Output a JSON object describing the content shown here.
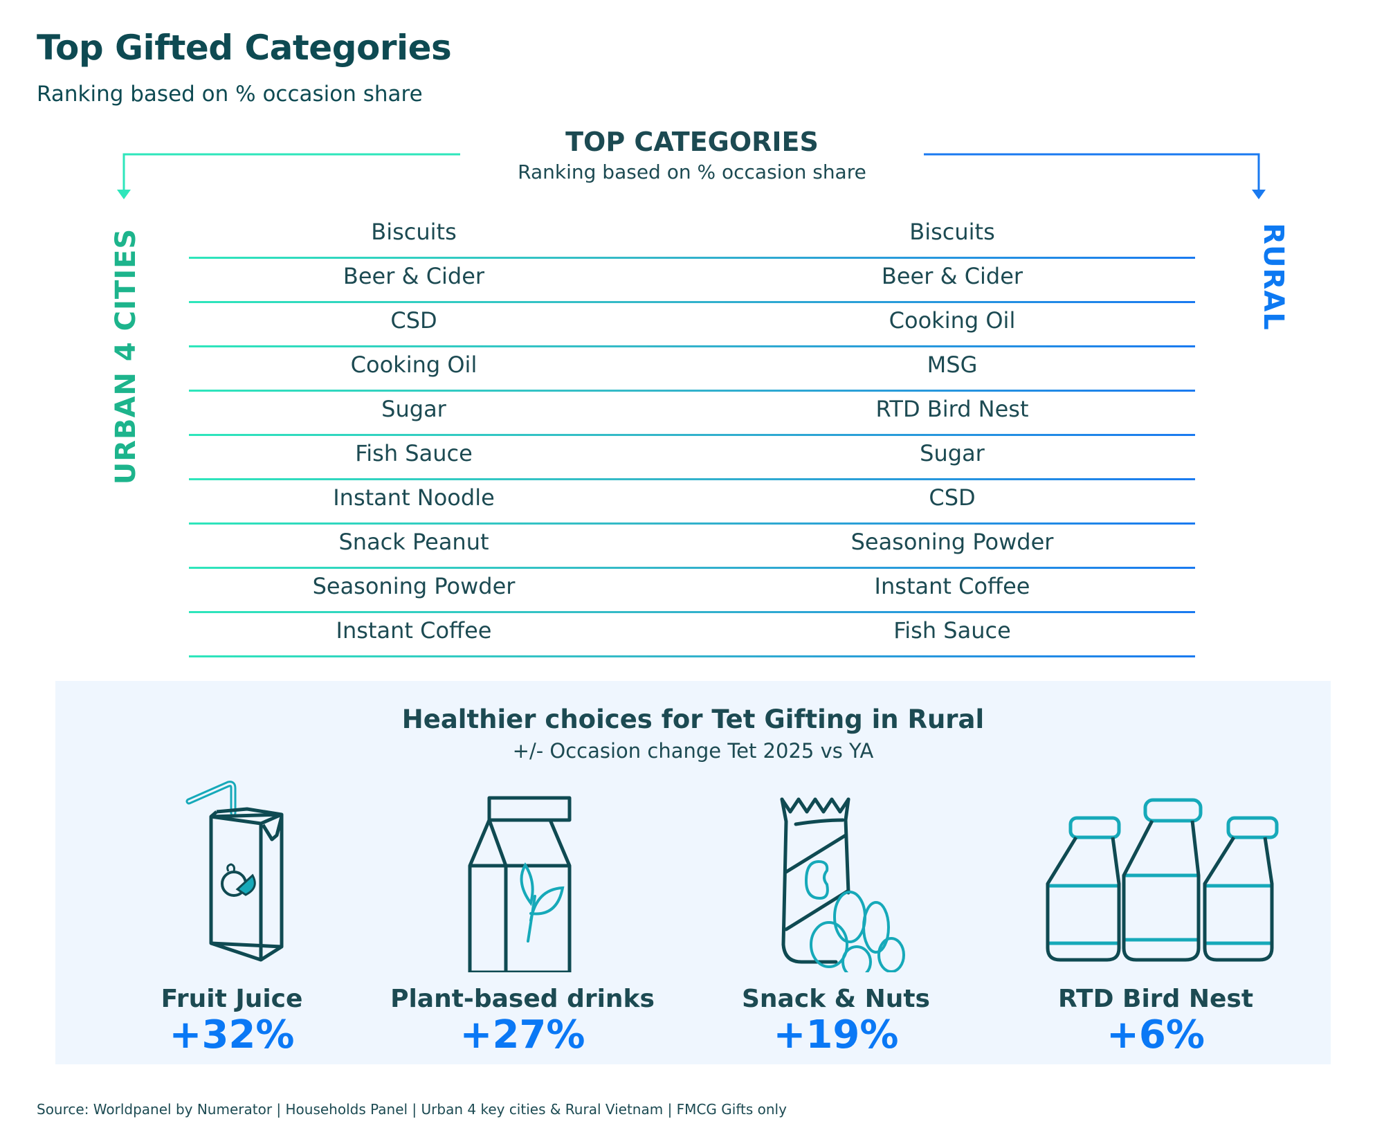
{
  "header": {
    "title": "Top Gifted Categories",
    "subtitle": "Ranking based on % occasion share"
  },
  "top_categories": {
    "heading": "TOP CATEGORIES",
    "subheading": "Ranking based on % occasion share",
    "left_label": "URBAN 4 CITIES",
    "right_label": "RURAL",
    "colors": {
      "urban": "#1db48c",
      "rural": "#0d79f2"
    },
    "urban": [
      "Biscuits",
      "Beer & Cider",
      "CSD",
      "Cooking Oil",
      "Sugar",
      "Fish Sauce",
      "Instant Noodle",
      "Snack Peanut",
      "Seasoning Powder",
      "Instant Coffee"
    ],
    "rural": [
      "Biscuits",
      "Beer & Cider",
      "Cooking Oil",
      "MSG",
      "RTD Bird Nest",
      "Sugar",
      "CSD",
      "Seasoning Powder",
      "Instant Coffee",
      "Fish Sauce"
    ]
  },
  "healthier": {
    "title": "Healthier choices for Tet Gifting in Rural",
    "subtitle": "+/- Occasion change Tet 2025 vs YA",
    "items": [
      {
        "name": "Fruit Juice",
        "value": "+32%",
        "icon": "juice-box-icon"
      },
      {
        "name": "Plant-based drinks",
        "value": "+27%",
        "icon": "milk-carton-leaf-icon"
      },
      {
        "name": "Snack & Nuts",
        "value": "+19%",
        "icon": "snack-bag-nuts-icon"
      },
      {
        "name": "RTD Bird Nest",
        "value": "+6%",
        "icon": "bottles-icon"
      }
    ]
  },
  "footer": {
    "source": "Source: Worldpanel by Numerator | Households Panel | Urban 4 key cities & Rural Vietnam | FMCG Gifts only"
  }
}
